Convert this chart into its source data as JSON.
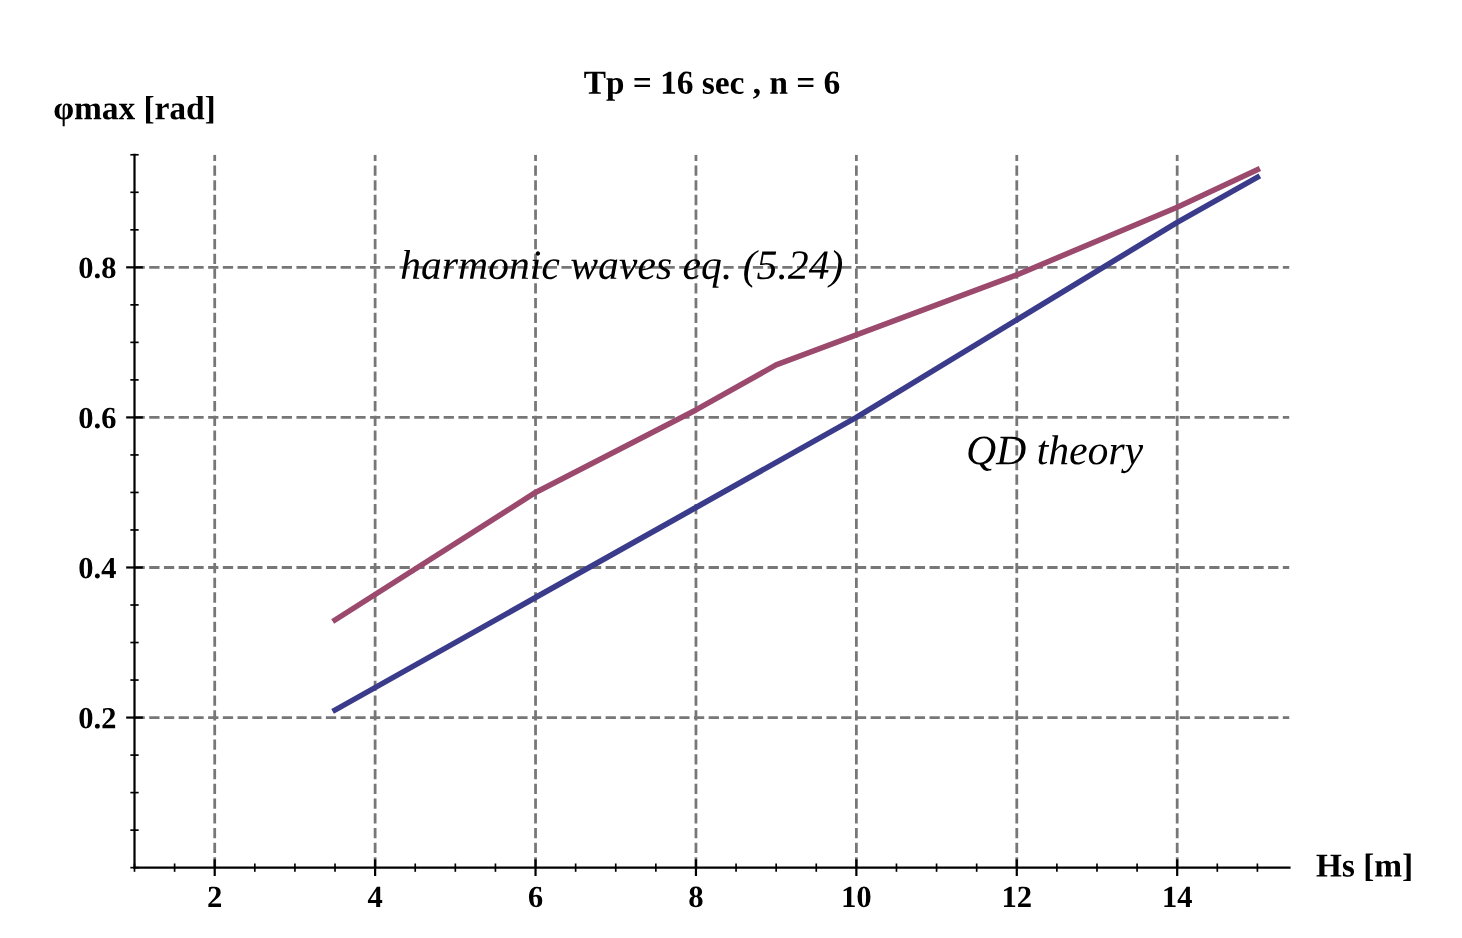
{
  "chart_data": {
    "type": "line",
    "title": "Tp = 16 sec , n = 6",
    "xlabel": "Hs [m]",
    "ylabel": "φmax [rad]",
    "xlim": [
      1,
      15.4
    ],
    "ylim": [
      0,
      0.95
    ],
    "xticks": [
      2,
      4,
      6,
      8,
      10,
      12,
      14
    ],
    "yticks": [
      0.2,
      0.4,
      0.6,
      0.8
    ],
    "grid": true,
    "line_style": "solid",
    "series": [
      {
        "name": "harmonic waves eq. (5.24)",
        "color": "#9b4a6e",
        "x": [
          3.5,
          6,
          8,
          9,
          10,
          12,
          14,
          15
        ],
        "values": [
          0.33,
          0.5,
          0.61,
          0.67,
          0.71,
          0.79,
          0.88,
          0.93
        ]
      },
      {
        "name": "QD theory",
        "color": "#3b3b8c",
        "x": [
          3.5,
          6,
          8,
          10,
          12,
          14,
          15
        ],
        "values": [
          0.21,
          0.36,
          0.48,
          0.6,
          0.73,
          0.86,
          0.92
        ]
      }
    ]
  }
}
